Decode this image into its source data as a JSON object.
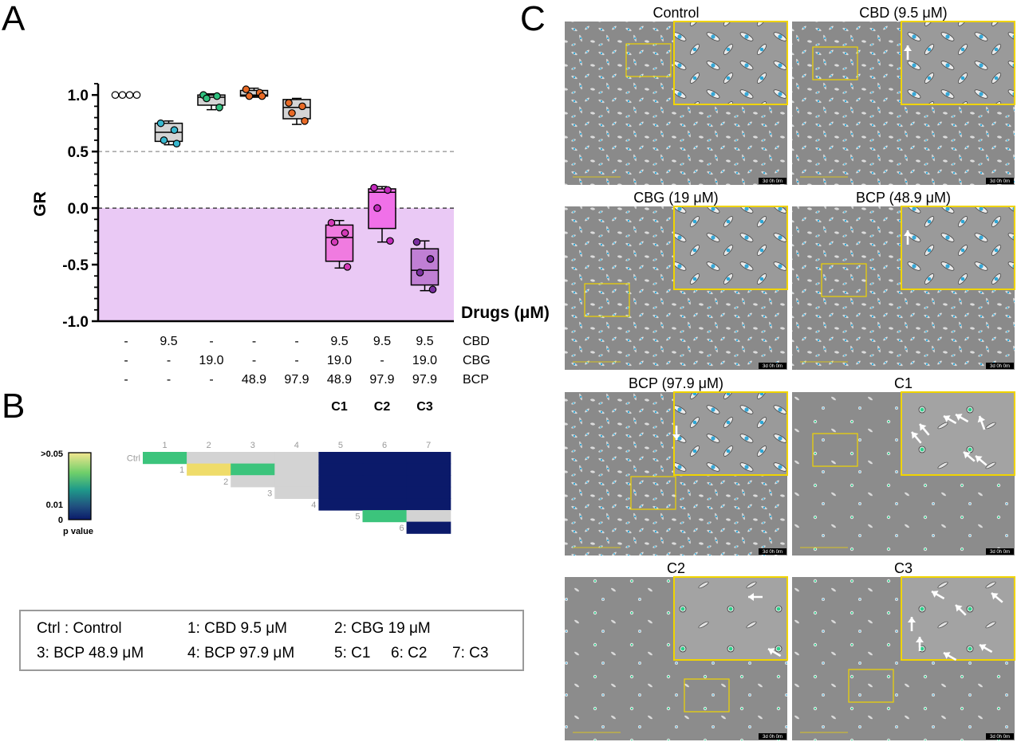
{
  "panel_labels": {
    "a": "A",
    "b": "B",
    "c": "C"
  },
  "chart_data": [
    {
      "type": "box",
      "ylabel": "GR",
      "xlabel": "Drugs (μM)",
      "ylim": [
        -1.0,
        1.1
      ],
      "yticks": [
        1.0,
        0.5,
        0.0,
        -0.5,
        -1.0
      ],
      "ytick_labels": [
        "1.0",
        "0.5",
        "0.0",
        "-0.5",
        "-1.0"
      ],
      "ref_lines": [
        0.5,
        0.0
      ],
      "negative_region_color": "#eac9f5",
      "groups": [
        {
          "points": [
            1.0,
            1.0,
            1.0,
            1.0
          ],
          "box": {
            "min": 0.995,
            "q1": 0.995,
            "median": 1.0,
            "q3": 1.005,
            "max": 1.005
          },
          "box_color": "#ffffff",
          "dot_color": "#ffffff"
        },
        {
          "points": [
            0.75,
            0.69,
            0.6,
            0.57
          ],
          "box": {
            "min": 0.56,
            "q1": 0.59,
            "median": 0.67,
            "q3": 0.75,
            "max": 0.77
          },
          "box_color": "#d4d4d4",
          "dot_color": "#38b8cf"
        },
        {
          "points": [
            1.0,
            0.99,
            0.97,
            0.89
          ],
          "box": {
            "min": 0.87,
            "q1": 0.91,
            "median": 0.98,
            "q3": 1.0,
            "max": 1.01
          },
          "box_color": "#d4d4d4",
          "dot_color": "#2ec07e"
        },
        {
          "points": [
            1.05,
            1.02,
            0.99,
            0.99
          ],
          "box": {
            "min": 0.98,
            "q1": 0.99,
            "median": 1.0,
            "q3": 1.04,
            "max": 1.06
          },
          "box_color": "#d4d4d4",
          "dot_color": "#e86a26"
        },
        {
          "points": [
            0.93,
            0.9,
            0.84,
            0.77
          ],
          "box": {
            "min": 0.74,
            "q1": 0.79,
            "median": 0.89,
            "q3": 0.96,
            "max": 0.97
          },
          "box_color": "#d4d4d4",
          "dot_color": "#e86a26"
        },
        {
          "points": [
            -0.13,
            -0.22,
            -0.3,
            -0.52
          ],
          "box": {
            "min": -0.53,
            "q1": -0.47,
            "median": -0.26,
            "q3": -0.15,
            "max": -0.11
          },
          "box_color": "#f07be0",
          "dot_color": "#d43ab8"
        },
        {
          "points": [
            0.18,
            0.16,
            0.0,
            -0.29
          ],
          "box": {
            "min": -0.3,
            "q1": -0.18,
            "median": 0.14,
            "q3": 0.17,
            "max": 0.19
          },
          "box_color": "#f070e8",
          "dot_color": "#c32bbd"
        },
        {
          "points": [
            -0.3,
            -0.45,
            -0.57,
            -0.72
          ],
          "box": {
            "min": -0.73,
            "q1": -0.68,
            "median": -0.55,
            "q3": -0.36,
            "max": -0.29
          },
          "box_color": "#c07fd4",
          "dot_color": "#7a2fa0"
        }
      ],
      "drug_table": {
        "row_labels": [
          "CBD",
          "CBG",
          "BCP"
        ],
        "rows": [
          [
            "-",
            "9.5",
            "-",
            "-",
            "-",
            "9.5",
            "9.5",
            "9.5"
          ],
          [
            "-",
            "-",
            "19.0",
            "-",
            "-",
            "19.0",
            "-",
            "19.0"
          ],
          [
            "-",
            "-",
            "-",
            "48.9",
            "97.9",
            "48.9",
            "97.9",
            "97.9"
          ]
        ],
        "combo_labels": [
          "",
          "",
          "",
          "",
          "",
          "C1",
          "C2",
          "C3"
        ]
      }
    },
    {
      "type": "heatmap",
      "col_labels": [
        "1",
        "2",
        "3",
        "4",
        "5",
        "6",
        "7"
      ],
      "row_labels": [
        "Ctrl",
        "1",
        "2",
        "3",
        "4",
        "5",
        "6"
      ],
      "cells": [
        [
          "green",
          "gray",
          "gray",
          "gray",
          "navy",
          "navy",
          "navy"
        ],
        [
          null,
          "yellow",
          "green",
          "gray",
          "navy",
          "navy",
          "navy"
        ],
        [
          null,
          null,
          "gray",
          "gray",
          "navy",
          "navy",
          "navy"
        ],
        [
          null,
          null,
          null,
          "gray",
          "navy",
          "navy",
          "navy"
        ],
        [
          null,
          null,
          null,
          null,
          "navy",
          "navy",
          "navy"
        ],
        [
          null,
          null,
          null,
          null,
          null,
          "green",
          "gray"
        ],
        [
          null,
          null,
          null,
          null,
          null,
          null,
          "navy"
        ]
      ],
      "cell_colors": {
        "green": "#3cc47c",
        "yellow": "#efdc6a",
        "gray": "#d3d3d3",
        "navy": "#0b1a6a"
      },
      "colorbar": {
        "labels": [
          ">0.05",
          "0.01",
          "0"
        ],
        "title": "p value",
        "stops": [
          "#f3e68f",
          "#6fcf6a",
          "#1f9a8a",
          "#20507f",
          "#0b1a6a"
        ]
      }
    }
  ],
  "legend": {
    "rows": [
      [
        "Ctrl : Control",
        "1: CBD 9.5 μM",
        "2: CBG 19 μM",
        ""
      ],
      [
        "3: BCP 48.9 μM",
        "4: BCP 97.9 μM",
        "5: C1",
        "6: C2",
        "7: C3"
      ]
    ]
  },
  "micrographs": {
    "titles": [
      "Control",
      "CBD (9.5 μM)",
      "CBG (19 μM)",
      "BCP (48.9 μM)",
      "BCP (97.9 μM)",
      "C1",
      "C2",
      "C3"
    ],
    "timestamp": "3d 0h 0m",
    "inset_border_color": "#f0d400"
  }
}
